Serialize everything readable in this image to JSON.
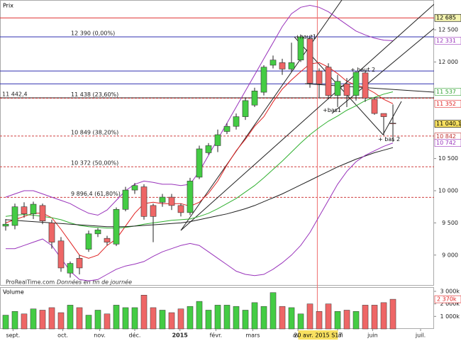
{
  "chart_data": [
    {
      "type": "candlestick",
      "title": "Prix",
      "source": "ProRealTime.com",
      "note": "Données en fin de journée",
      "categories": [
        null,
        null,
        null,
        null,
        null,
        null,
        null,
        null,
        null,
        null,
        null,
        null,
        null,
        null,
        null,
        null,
        null,
        null,
        null,
        null,
        null,
        null,
        null,
        null,
        null,
        null,
        null,
        null,
        null,
        null,
        null,
        null,
        null,
        null,
        null,
        null,
        null,
        null,
        null,
        null,
        null,
        null,
        null
      ],
      "open": [
        9450,
        9460,
        9750,
        9640,
        9770,
        9500,
        9220,
        8720,
        8950,
        9090,
        9330,
        9260,
        9170,
        9710,
        10010,
        10060,
        9770,
        9820,
        9900,
        9770,
        9660,
        10210,
        10590,
        10700,
        10920,
        11000,
        11150,
        11330,
        11530,
        11950,
        11990,
        11890,
        12030,
        12360,
        11860,
        11920,
        11480,
        11660,
        11480,
        11830,
        11420,
        11200,
        11050
      ],
      "high": [
        9560,
        9800,
        9820,
        9830,
        9800,
        9550,
        9280,
        8900,
        9000,
        9380,
        9420,
        9300,
        9740,
        10060,
        10120,
        10100,
        9800,
        9950,
        9950,
        9800,
        10200,
        10700,
        10740,
        10950,
        11050,
        11200,
        11450,
        11600,
        11950,
        12100,
        12050,
        12300,
        12420,
        12390,
        11900,
        11980,
        11800,
        11750,
        11860,
        11870,
        11450,
        11200,
        11340
      ],
      "low": [
        9380,
        9400,
        9580,
        9560,
        9480,
        9100,
        8740,
        8650,
        8700,
        9050,
        9280,
        9150,
        9140,
        9680,
        9950,
        9550,
        9200,
        9750,
        9700,
        9600,
        9620,
        10180,
        10560,
        10600,
        10880,
        10950,
        11100,
        11300,
        11480,
        11900,
        11800,
        11850,
        12000,
        11600,
        11450,
        11420,
        11300,
        11300,
        11400,
        11380,
        11180,
        10860,
        10760
      ],
      "close": [
        9480,
        9750,
        9640,
        9790,
        9530,
        9200,
        8800,
        8870,
        8800,
        9330,
        9390,
        9200,
        9710,
        10010,
        10080,
        9600,
        9600,
        9900,
        9770,
        9660,
        10150,
        10650,
        10700,
        10870,
        11000,
        11150,
        11400,
        11550,
        11920,
        12030,
        11890,
        11990,
        12390,
        11670,
        11660,
        11480,
        11700,
        11480,
        11840,
        11440,
        11200,
        11150,
        11040
      ],
      "up_color": "#44cc44",
      "down_color": "#ee6666",
      "lines": [
        {
          "color": "#e02020",
          "values": [
            9500,
            9550,
            9600,
            9650,
            9650,
            9580,
            9400,
            9200,
            9000,
            8950,
            9000,
            9150,
            9250,
            9450,
            9650,
            9800,
            9820,
            9800,
            9800,
            9800,
            9760,
            9820,
            9960,
            10150,
            10400,
            10620,
            10800,
            11000,
            11150,
            11380,
            11580,
            11720,
            11850,
            11970,
            11990,
            11920,
            11820,
            11700,
            11640,
            11600,
            11520,
            11420,
            11352
          ]
        },
        {
          "color": "#30b030",
          "values": [
            9600,
            9620,
            9630,
            9620,
            9600,
            9580,
            9550,
            9500,
            9460,
            9440,
            9430,
            9420,
            9420,
            9430,
            9450,
            9480,
            9500,
            9520,
            9540,
            9550,
            9560,
            9600,
            9650,
            9720,
            9800,
            9880,
            9980,
            10080,
            10200,
            10330,
            10460,
            10600,
            10740,
            10870,
            10980,
            11080,
            11160,
            11250,
            11320,
            11400,
            11450,
            11500,
            11537
          ]
        },
        {
          "color": "#202020",
          "values": [
            9550,
            9540,
            9530,
            9520,
            9510,
            9500,
            9490,
            9480,
            9470,
            9460,
            9450,
            9440,
            9440,
            9440,
            9450,
            9460,
            9470,
            9480,
            9490,
            9500,
            9520,
            9550,
            9580,
            9610,
            9640,
            9680,
            9720,
            9770,
            9830,
            9890,
            9950,
            10020,
            10090,
            10160,
            10230,
            10300,
            10370,
            10430,
            10490,
            10540,
            10590,
            10630,
            10670
          ]
        },
        {
          "color": "#9933bb",
          "values": [
            9900,
            9950,
            10000,
            10000,
            9950,
            9900,
            9850,
            9800,
            9720,
            9650,
            9620,
            9700,
            9850,
            10000,
            10100,
            10150,
            10130,
            10100,
            10100,
            10080,
            10100,
            10300,
            10550,
            10800,
            11050,
            11300,
            11550,
            11800,
            12050,
            12300,
            12550,
            12750,
            12850,
            12880,
            12850,
            12780,
            12680,
            12580,
            12480,
            12420,
            12370,
            12340,
            12331
          ]
        },
        {
          "color": "#9933bb",
          "values": [
            9100,
            9100,
            9150,
            9200,
            9250,
            9150,
            8950,
            8750,
            8620,
            8600,
            8620,
            8700,
            8780,
            8830,
            8860,
            8900,
            8980,
            9050,
            9100,
            9150,
            9180,
            9150,
            9050,
            8950,
            8850,
            8750,
            8700,
            8680,
            8700,
            8780,
            8880,
            9000,
            9150,
            9350,
            9600,
            9850,
            10100,
            10300,
            10450,
            10550,
            10620,
            10690,
            10742
          ]
        }
      ],
      "levels": [
        {
          "value": 12685,
          "color": "#e03030",
          "dash": false
        },
        {
          "value": 12390,
          "color": "#3030b0",
          "dash": false,
          "label": "12 390 (0,00%)"
        },
        {
          "value": 11860,
          "color": "#3030b0",
          "dash": false
        },
        {
          "value": 11660,
          "color": "#3030b0",
          "dash": false
        },
        {
          "value": 11442.4,
          "color": "#202020",
          "dash": false,
          "left_label": "11 442,4"
        },
        {
          "value": 11438,
          "color": "#c03030",
          "dash": true,
          "label": "11 438 (23,60%)"
        },
        {
          "value": 10849,
          "color": "#d04040",
          "dash": true,
          "label": "10 849 (38,20%)"
        },
        {
          "value": 10372,
          "color": "#d04040",
          "dash": true,
          "label": "10 372 (50,00%)"
        },
        {
          "value": 9896.4,
          "color": "#d04040",
          "dash": true,
          "label": "9 896,4 (61,80%)"
        }
      ],
      "annotations": [
        {
          "text": "+haut1",
          "index": 32,
          "value": 12390
        },
        {
          "text": "+ haut 2",
          "index": 38,
          "value": 11880
        },
        {
          "text": "+bas1",
          "index": 35,
          "value": 11250
        },
        {
          "text": "+ bas 2",
          "index": 41,
          "value": 10800
        }
      ],
      "xlim": [
        -0.615,
        46.46
      ],
      "ylim": [
        8535,
        12963
      ],
      "xticks": [
        {
          "value": 0.8,
          "label": "sept."
        },
        {
          "value": 6.2,
          "label": "oct."
        },
        {
          "value": 10.2,
          "label": "nov."
        },
        {
          "value": 14,
          "label": "déc."
        },
        {
          "value": 18.9,
          "label": "2015"
        },
        {
          "value": 22.8,
          "label": "févr."
        },
        {
          "value": 26.8,
          "label": "mars"
        },
        {
          "value": 31.7,
          "label": "avr."
        },
        {
          "value": 36,
          "label": "mai"
        },
        {
          "value": 39.8,
          "label": "juin"
        },
        {
          "value": 45,
          "label": "juil."
        }
      ],
      "yticks": [
        {
          "value": 12500,
          "label": "12 500"
        },
        {
          "value": 12000,
          "label": "12 000"
        },
        {
          "value": 10500,
          "label": "10 500"
        },
        {
          "value": 10000,
          "label": "10 000"
        },
        {
          "value": 9500,
          "label": "9 500"
        },
        {
          "value": 9000,
          "label": "9 000"
        }
      ],
      "markers": [
        {
          "value": 12685,
          "label": "12 685",
          "color": "#000000",
          "background": "#f4f4b0"
        },
        {
          "value": 12331,
          "label": "12 331",
          "color": "#9933bb",
          "background": "#ffffff"
        },
        {
          "value": 11537,
          "label": "11 537",
          "color": "#30a030",
          "background": "#ffffff"
        },
        {
          "value": 11352,
          "label": "11 352",
          "color": "#e02020",
          "background": "#ffffff"
        },
        {
          "value": 11040.1,
          "label": "11 040,10",
          "color": "#000000",
          "background": "#f8e060"
        },
        {
          "value": 10842,
          "label": "10 842",
          "color": "#c03030",
          "background": "#ffffff"
        },
        {
          "value": 10742,
          "label": "10 742",
          "color": "#9933bb",
          "background": "#ffffff"
        }
      ],
      "cursor": {
        "index": 33.8,
        "label": "20 avr. 2015 S17"
      }
    },
    {
      "type": "bar",
      "title": "Volume",
      "values": [
        1100000,
        1400000,
        1200000,
        1600000,
        1500000,
        1700000,
        1300000,
        1900000,
        1700000,
        1100000,
        1500000,
        1200000,
        1900000,
        1700000,
        1700000,
        2700000,
        1700000,
        1500000,
        1300000,
        1600000,
        1800000,
        2200000,
        1500000,
        1900000,
        1900000,
        1800000,
        1500000,
        2100000,
        1800000,
        2900000,
        1800000,
        1700000,
        1200000,
        2000000,
        1400000,
        2000000,
        1400000,
        1500000,
        1400000,
        1900000,
        1900000,
        2100000,
        2370000
      ],
      "ylim": [
        0,
        3280000
      ],
      "yticks": [
        {
          "value": 3000000,
          "label": "3 000k"
        },
        {
          "value": 2000000,
          "label": "2 000k"
        },
        {
          "value": 1000000,
          "label": "1 000k"
        }
      ],
      "last": {
        "value": 2370000,
        "label": "2 370k"
      }
    }
  ]
}
